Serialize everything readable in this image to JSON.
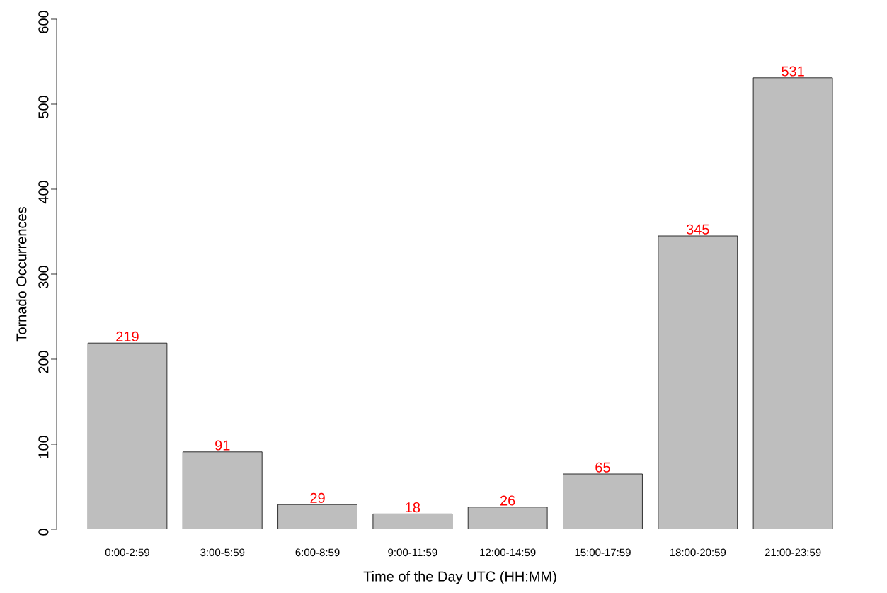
{
  "chart_data": {
    "type": "bar",
    "xlabel": "Time of the Day UTC (HH:MM)",
    "ylabel": "Tornado Occurrences",
    "categories": [
      "0:00-2:59",
      "3:00-5:59",
      "6:00-8:59",
      "9:00-11:59",
      "12:00-14:59",
      "15:00-17:59",
      "18:00-20:59",
      "21:00-23:59"
    ],
    "values": [
      219,
      91,
      29,
      18,
      26,
      65,
      345,
      531
    ],
    "color": "#bebebe",
    "data_labels": true,
    "ylim": [
      0,
      600
    ],
    "yticks": [
      0,
      100,
      200,
      300,
      400,
      500,
      600
    ]
  }
}
